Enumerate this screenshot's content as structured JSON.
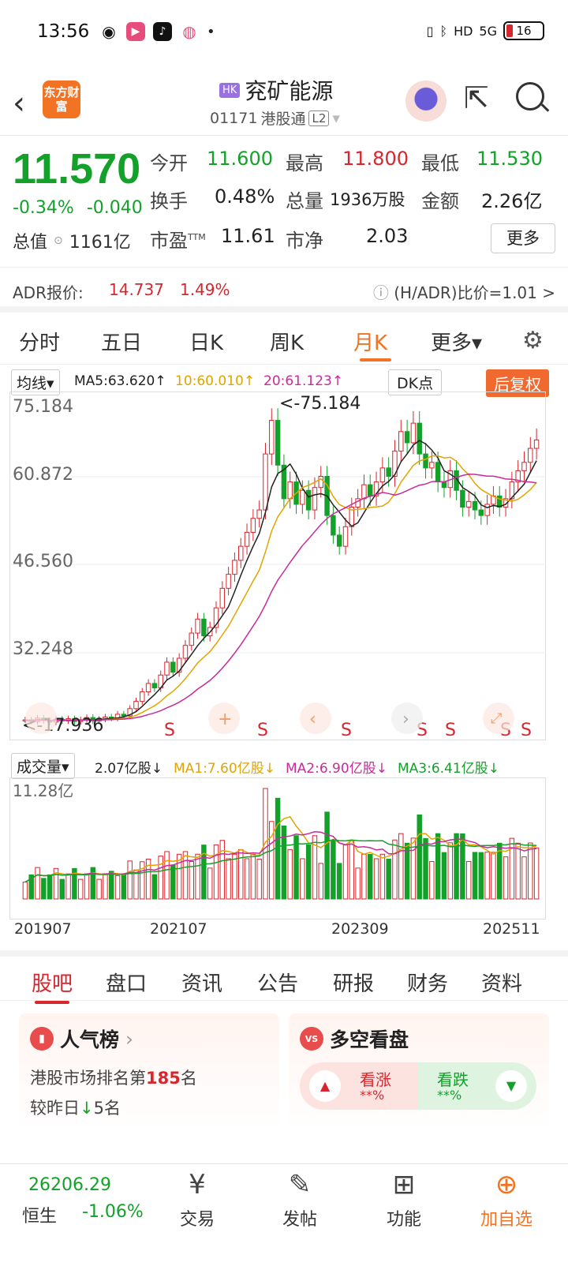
{
  "status": {
    "time": "13:56",
    "battery": "16",
    "signal": "5G"
  },
  "header": {
    "logo": "东方财富",
    "market_tag": "HK",
    "name": "兖矿能源",
    "code": "01171",
    "channel": "港股通",
    "level": "L2"
  },
  "quote": {
    "price": "11.570",
    "pct": "-0.34%",
    "chg": "-0.040",
    "open_label": "今开",
    "open": "11.600",
    "high_label": "最高",
    "high": "11.800",
    "low_label": "最低",
    "low": "11.530",
    "turnover_label": "换手",
    "turnover": "0.48%",
    "volume_label": "总量",
    "volume": "1936万股",
    "amount_label": "金额",
    "amount": "2.26亿",
    "mktcap_label": "总值",
    "mktcap": "1161亿",
    "pe_label": "市盈",
    "pe_sup": "TTM",
    "pe": "11.61",
    "pb_label": "市净",
    "pb": "2.03",
    "more": "更多"
  },
  "adr": {
    "label": "ADR报价:",
    "price": "14.737",
    "pct": "1.49%",
    "ratio": "(H/ADR)比价=1.01 >"
  },
  "ktabs": [
    "分时",
    "五日",
    "日K",
    "周K",
    "月K",
    "更多▾"
  ],
  "kline": {
    "indicator": "均线▾",
    "ma5": "MA5:63.620↑",
    "ma10": "10:60.010↑",
    "ma20": "20:61.123↑",
    "dk": "DK点",
    "adjust": "后复权",
    "ylabels": [
      "75.184",
      "60.872",
      "46.560",
      "32.248",
      "17.936"
    ],
    "max_note": "<-75.184",
    "min_note": "<-17.936"
  },
  "volume": {
    "indicator": "成交量▾",
    "value": "2.07亿股↓",
    "ma1": "MA1:7.60亿股↓",
    "ma2": "MA2:6.90亿股↓",
    "ma3": "MA3:6.41亿股↓",
    "ymax": "11.28亿"
  },
  "dates": [
    "201907",
    "202107",
    "202309",
    "202511"
  ],
  "btabs": [
    "股吧",
    "盘口",
    "资讯",
    "公告",
    "研报",
    "财务",
    "资料"
  ],
  "popularity": {
    "title": "人气榜",
    "line1_pre": "港股市场排名第",
    "rank": "185",
    "line1_post": "名",
    "line2_pre": "较昨日",
    "change": "5",
    "line2_post": "名"
  },
  "sentiment": {
    "title": "多空看盘",
    "bull": "看涨",
    "bull_pct": "**%",
    "bear": "看跌",
    "bear_pct": "**%"
  },
  "bottom": {
    "hsi_value": "26206.29",
    "hsi_name": "恒生",
    "hsi_pct": "-1.06%",
    "nav": [
      "交易",
      "发帖",
      "功能",
      "加自选"
    ]
  },
  "colors": {
    "up": "#d7262d",
    "down": "#13a12a",
    "accent": "#f27324"
  },
  "chart_data": {
    "type": "candlestick",
    "period": "monthly",
    "xlabels": [
      "201907",
      "202107",
      "202309",
      "202511"
    ],
    "ylim": [
      17.936,
      75.184
    ],
    "y_ticks": [
      75.184,
      60.872,
      46.56,
      32.248,
      17.936
    ],
    "max_point": 75.184,
    "min_point": 17.936,
    "series": [
      {
        "name": "MA5",
        "last": 63.62
      },
      {
        "name": "MA10",
        "last": 60.01
      },
      {
        "name": "MA20",
        "last": 61.123
      }
    ],
    "closes": [
      18.5,
      18.2,
      18.8,
      18.4,
      18.1,
      18.6,
      18.3,
      18.7,
      18.2,
      18.5,
      18.9,
      18.3,
      18.6,
      19.0,
      18.8,
      19.5,
      19.2,
      20.5,
      21.8,
      23.5,
      25.0,
      24.2,
      26.5,
      28.8,
      27.0,
      29.5,
      31.8,
      34.0,
      36.5,
      33.5,
      35.0,
      38.5,
      42.0,
      44.5,
      47.0,
      49.5,
      52.0,
      54.5,
      56.0,
      66.0,
      72.0,
      64.0,
      58.0,
      61.0,
      57.0,
      59.5,
      56.0,
      60.0,
      62.0,
      55.0,
      51.5,
      49.5,
      53.0,
      56.5,
      58.0,
      60.5,
      58.5,
      61.0,
      63.5,
      62.0,
      66.5,
      70.0,
      68.0,
      71.5,
      66.0,
      63.5,
      64.5,
      61.0,
      60.0,
      63.0,
      59.5,
      56.5,
      57.5,
      56.0,
      55.0,
      57.0,
      58.5,
      56.5,
      58.0,
      61.0,
      63.0,
      64.5,
      67.0,
      68.5
    ]
  }
}
